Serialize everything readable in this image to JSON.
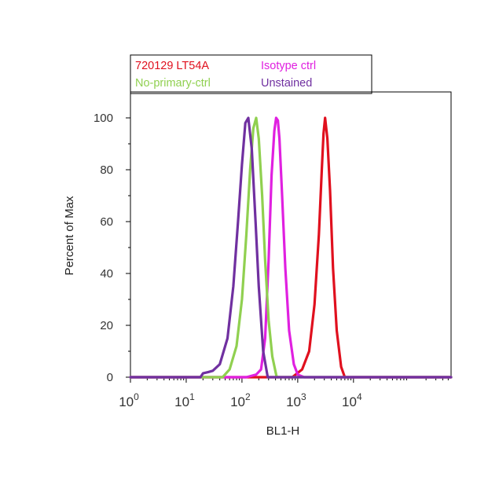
{
  "chart_data": {
    "type": "line",
    "title": "",
    "xlabel": "BL1-H",
    "ylabel": "Percent of Max",
    "x_scale": "log",
    "xlim": [
      1,
      562340
    ],
    "ylim": [
      0,
      110
    ],
    "grid": false,
    "legend_position": "top-left",
    "x_ticks": [
      {
        "value": 1,
        "base": "10",
        "exp": "0"
      },
      {
        "value": 10,
        "base": "10",
        "exp": "1"
      },
      {
        "value": 100,
        "base": "10",
        "exp": "2"
      },
      {
        "value": 1000,
        "base": "10",
        "exp": "3"
      },
      {
        "value": 10000,
        "base": "10",
        "exp": "4"
      }
    ],
    "y_ticks": [
      "0",
      "20",
      "40",
      "60",
      "80",
      "100"
    ],
    "series": [
      {
        "name": "720129 LT54A",
        "color": "#e0101e",
        "x": [
          1,
          800,
          1200,
          1600,
          2000,
          2400,
          2700,
          2900,
          3100,
          3400,
          3800,
          4300,
          5000,
          6000,
          7000,
          562340
        ],
        "y": [
          0,
          0,
          3,
          10,
          28,
          55,
          80,
          94,
          100,
          92,
          72,
          42,
          18,
          4,
          0,
          0
        ]
      },
      {
        "name": "Isotype ctrl",
        "color": "#e020e0",
        "x": [
          1,
          120,
          180,
          220,
          260,
          300,
          340,
          380,
          410,
          440,
          470,
          520,
          600,
          700,
          850,
          1000,
          1300,
          562340
        ],
        "y": [
          0,
          0,
          1,
          3,
          15,
          45,
          78,
          95,
          100,
          99,
          92,
          72,
          42,
          18,
          5,
          1,
          0,
          0
        ]
      },
      {
        "name": "No-primary-ctrl",
        "color": "#90d050",
        "x": [
          1,
          45,
          60,
          80,
          100,
          120,
          140,
          160,
          180,
          200,
          230,
          260,
          300,
          350,
          420,
          562340
        ],
        "y": [
          0,
          0,
          3,
          12,
          30,
          55,
          80,
          96,
          100,
          92,
          70,
          45,
          22,
          8,
          0,
          0
        ]
      },
      {
        "name": "Unstained",
        "color": "#7030a0",
        "x": [
          1,
          18,
          20,
          25,
          30,
          40,
          55,
          70,
          85,
          100,
          115,
          130,
          150,
          175,
          200,
          240,
          290,
          562340
        ],
        "y": [
          0,
          0,
          1.5,
          2,
          2.5,
          5,
          15,
          35,
          60,
          82,
          98,
          100,
          88,
          60,
          35,
          10,
          0,
          0
        ]
      }
    ]
  }
}
